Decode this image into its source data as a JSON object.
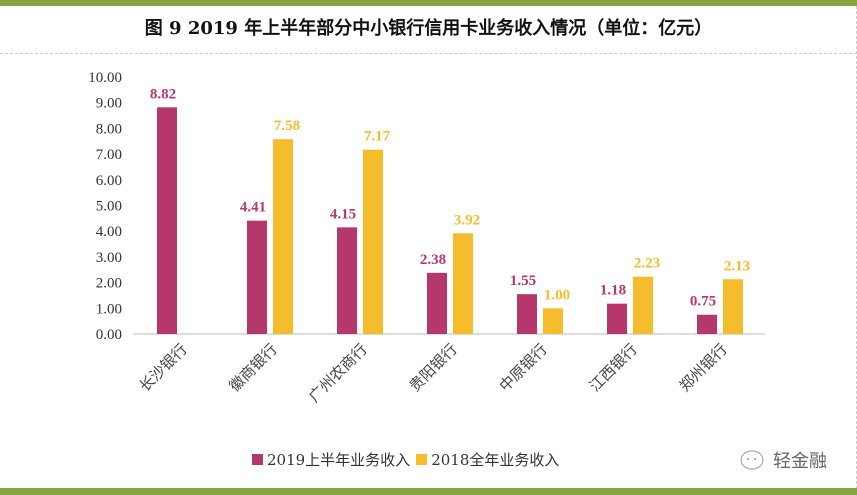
{
  "title": "图 9   2019 年上半年部分中小银行信用卡业务收入情况（单位：亿元）",
  "watermark": "轻金融",
  "chart_data": {
    "type": "bar",
    "title": "图 9   2019 年上半年部分中小银行信用卡业务收入情况（单位：亿元）",
    "categories": [
      "长沙银行",
      "徽商银行",
      "广州农商行",
      "贵阳银行",
      "中原银行",
      "江西银行",
      "郑州银行"
    ],
    "series": [
      {
        "name": "2019上半年业务收入",
        "color": "#b5376b",
        "values": [
          8.82,
          4.41,
          4.15,
          2.38,
          1.55,
          1.18,
          0.75
        ]
      },
      {
        "name": "2018全年业务收入",
        "color": "#f5bc2c",
        "values": [
          null,
          7.58,
          7.17,
          3.92,
          1.0,
          2.23,
          2.13
        ]
      }
    ],
    "ylim": [
      0,
      10
    ],
    "yticks": [
      "0.00",
      "1.00",
      "2.00",
      "3.00",
      "4.00",
      "5.00",
      "6.00",
      "7.00",
      "8.00",
      "9.00",
      "10.00"
    ],
    "grid": false,
    "legend": "bottom-left"
  }
}
